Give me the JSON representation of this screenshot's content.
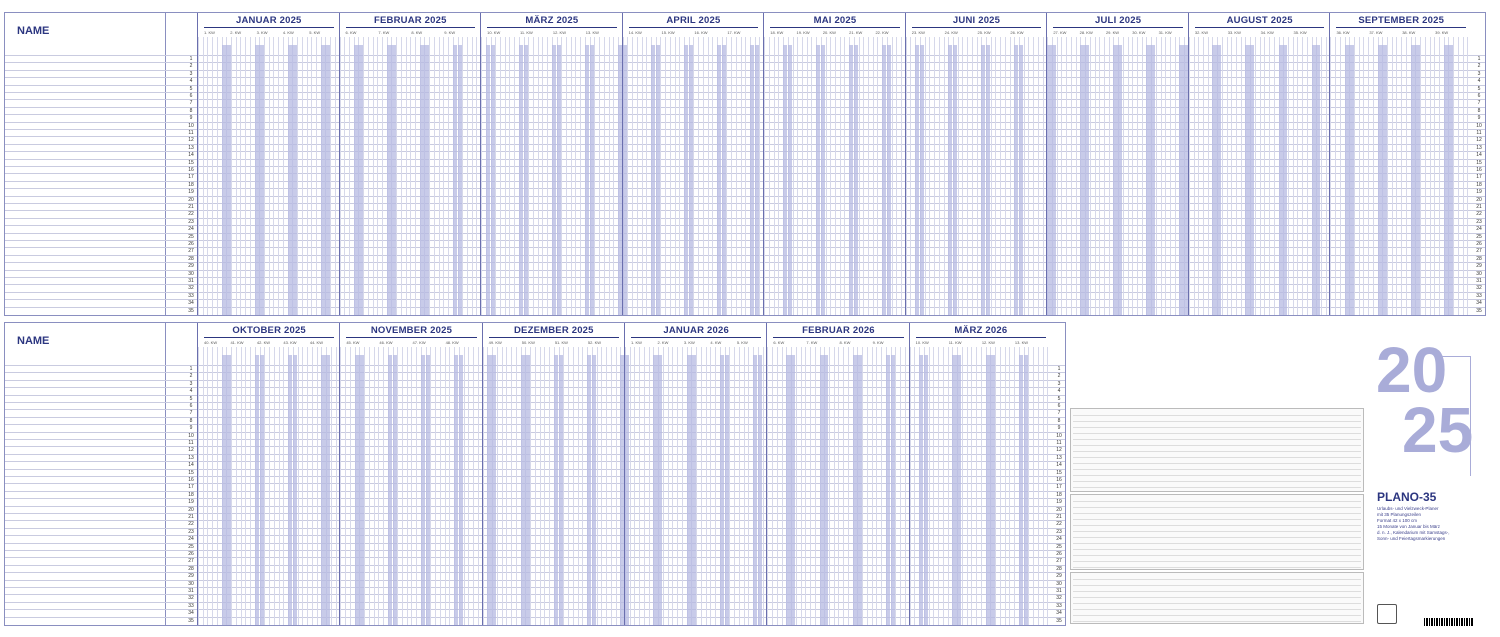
{
  "name_label": "NAME",
  "top_months": [
    {
      "label": "JANUAR 2025",
      "weeks": [
        "1. KW",
        "2. KW",
        "3. KW",
        "4. KW",
        "5. KW"
      ]
    },
    {
      "label": "FEBRUAR 2025",
      "weeks": [
        "6. KW",
        "7. KW",
        "8. KW",
        "9. KW"
      ]
    },
    {
      "label": "MÄRZ 2025",
      "weeks": [
        "10. KW",
        "11. KW",
        "12. KW",
        "13. KW"
      ]
    },
    {
      "label": "APRIL 2025",
      "weeks": [
        "14. KW",
        "15. KW",
        "16. KW",
        "17. KW"
      ]
    },
    {
      "label": "MAI 2025",
      "weeks": [
        "18. KW",
        "19. KW",
        "20. KW",
        "21. KW",
        "22. KW"
      ]
    },
    {
      "label": "JUNI 2025",
      "weeks": [
        "23. KW",
        "24. KW",
        "25. KW",
        "26. KW"
      ]
    },
    {
      "label": "JULI 2025",
      "weeks": [
        "27. KW",
        "28. KW",
        "29. KW",
        "30. KW",
        "31. KW"
      ]
    },
    {
      "label": "AUGUST 2025",
      "weeks": [
        "32. KW",
        "33. KW",
        "34. KW",
        "35. KW"
      ]
    },
    {
      "label": "SEPTEMBER 2025",
      "weeks": [
        "36. KW",
        "37. KW",
        "38. KW",
        "39. KW"
      ]
    }
  ],
  "bottom_months": [
    {
      "label": "OKTOBER 2025",
      "weeks": [
        "40. KW",
        "41. KW",
        "42. KW",
        "43. KW",
        "44. KW"
      ]
    },
    {
      "label": "NOVEMBER 2025",
      "weeks": [
        "45. KW",
        "46. KW",
        "47. KW",
        "48. KW"
      ]
    },
    {
      "label": "DEZEMBER 2025",
      "weeks": [
        "49. KW",
        "50. KW",
        "51. KW",
        "52. KW"
      ]
    },
    {
      "label": "JANUAR 2026",
      "weeks": [
        "1. KW",
        "2. KW",
        "3. KW",
        "4. KW",
        "5. KW"
      ]
    },
    {
      "label": "FEBRUAR 2026",
      "weeks": [
        "6. KW",
        "7. KW",
        "8. KW",
        "9. KW"
      ]
    },
    {
      "label": "MÄRZ 2026",
      "weeks": [
        "10. KW",
        "11. KW",
        "12. KW",
        "13. KW"
      ]
    }
  ],
  "rows": [
    "1",
    "2",
    "3",
    "4",
    "5",
    "6",
    "7",
    "8",
    "9",
    "10",
    "11",
    "12",
    "13",
    "14",
    "15",
    "16",
    "17",
    "18",
    "19",
    "20",
    "21",
    "22",
    "23",
    "24",
    "25",
    "26",
    "27",
    "28",
    "29",
    "30",
    "31",
    "32",
    "33",
    "34",
    "35"
  ],
  "year_top": "20",
  "year_bottom": "25",
  "product_name": "PLANO-35",
  "product_lines": [
    "Urlaubs- und Vielzweck-Planer",
    "mit 35 Planungszeilen",
    "Format 42 x 100 cm",
    "15 Monate von Januar bis März",
    "d. n. J., Kalendarium mit Samstags-,",
    "Sonn- und Feiertagsmarkierungen"
  ],
  "colors": {
    "accent": "#2c3680",
    "weekend": "#b6b9e2",
    "year": "#a9acd8"
  }
}
